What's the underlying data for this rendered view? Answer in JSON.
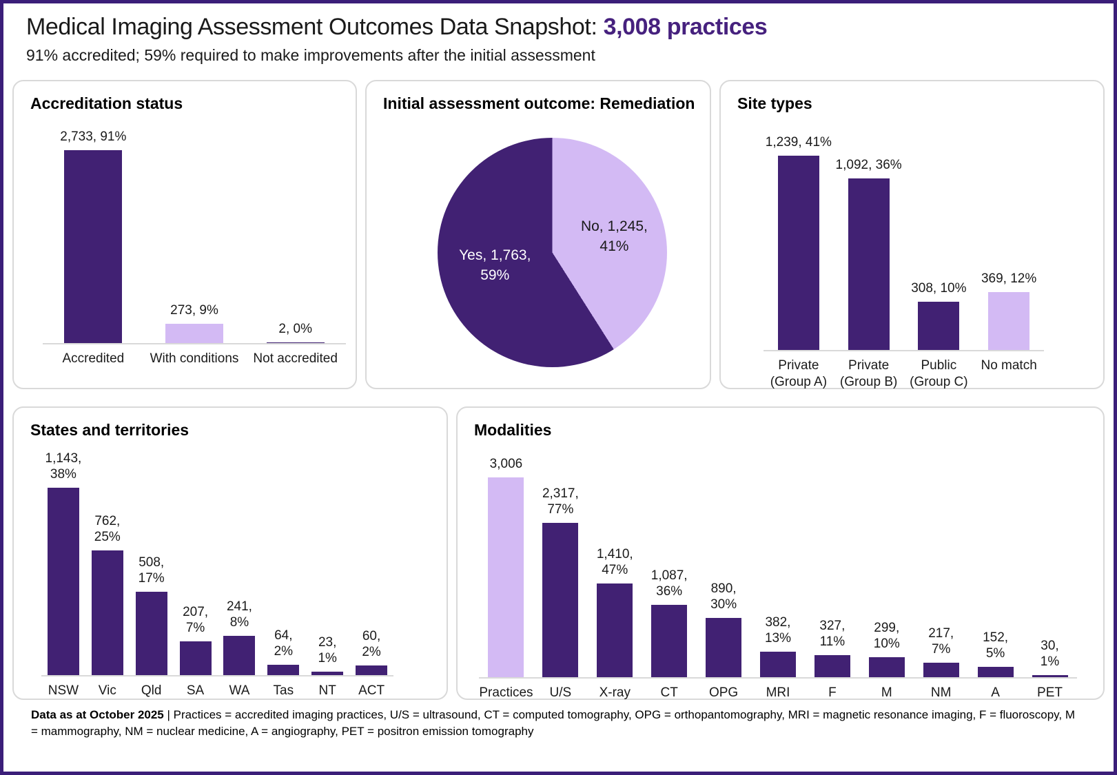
{
  "page": {
    "title_main": "Medical Imaging Assessment Outcomes Data Snapshot:",
    "title_accent": "3,008 practices",
    "subtitle": "91% accredited; 59% required to make improvements after the initial assessment"
  },
  "colors": {
    "dark_purple": "#412173",
    "light_purple": "#d3baf4",
    "accent_text": "#46217e",
    "page_border": "#3b1e79",
    "axis_gray": "#d9d9d9"
  },
  "chart_data": [
    {
      "id": "accreditation",
      "type": "bar",
      "title": "Accreditation status",
      "categories": [
        [
          "Accredited"
        ],
        [
          "With conditions"
        ],
        [
          "Not accredited"
        ]
      ],
      "values": [
        2733,
        273,
        2
      ],
      "value_labels": [
        [
          "2,733, 91%"
        ],
        [
          "273, 9%"
        ],
        [
          "2, 0%"
        ]
      ],
      "bar_colors": [
        "dark",
        "light",
        "dark"
      ],
      "ylim": [
        0,
        2733
      ],
      "grid": false,
      "legend": "none"
    },
    {
      "id": "remediation",
      "type": "pie",
      "title": "Initial assessment outcome: Remediation",
      "slices": [
        {
          "name": "No",
          "value": 1245,
          "pct": 41,
          "color": "light",
          "label_line1": "No, 1,245,",
          "label_line2": "41%"
        },
        {
          "name": "Yes",
          "value": 1763,
          "pct": 59,
          "color": "dark",
          "label_line1": "Yes, 1,763,",
          "label_line2": "59%"
        }
      ],
      "start_angle_deg": 0,
      "direction": "clockwise",
      "legend": "none"
    },
    {
      "id": "site_types",
      "type": "bar",
      "title": "Site types",
      "categories": [
        [
          "Private",
          "(Group A)"
        ],
        [
          "Private",
          "(Group B)"
        ],
        [
          "Public",
          "(Group C)"
        ],
        [
          "No match"
        ]
      ],
      "values": [
        1239,
        1092,
        308,
        369
      ],
      "value_labels": [
        [
          "1,239, 41%"
        ],
        [
          "1,092, 36%"
        ],
        [
          "308, 10%"
        ],
        [
          "369, 12%"
        ]
      ],
      "bar_colors": [
        "dark",
        "dark",
        "dark",
        "light"
      ],
      "ylim": [
        0,
        1239
      ],
      "grid": false,
      "legend": "none"
    },
    {
      "id": "states",
      "type": "bar",
      "title": "States and territories",
      "categories": [
        [
          "NSW"
        ],
        [
          "Vic"
        ],
        [
          "Qld"
        ],
        [
          "SA"
        ],
        [
          "WA"
        ],
        [
          "Tas"
        ],
        [
          "NT"
        ],
        [
          "ACT"
        ]
      ],
      "values": [
        1143,
        762,
        508,
        207,
        241,
        64,
        23,
        60
      ],
      "value_labels": [
        [
          "1,143,",
          "38%"
        ],
        [
          "762,",
          "25%"
        ],
        [
          "508,",
          "17%"
        ],
        [
          "207,",
          "7%"
        ],
        [
          "241,",
          "8%"
        ],
        [
          "64,",
          "2%"
        ],
        [
          "23,",
          "1%"
        ],
        [
          "60,",
          "2%"
        ]
      ],
      "bar_colors": [
        "dark",
        "dark",
        "dark",
        "dark",
        "dark",
        "dark",
        "dark",
        "dark"
      ],
      "ylim": [
        0,
        1143
      ],
      "grid": false,
      "legend": "none"
    },
    {
      "id": "modalities",
      "type": "bar",
      "title": "Modalities",
      "categories": [
        [
          "Practices"
        ],
        [
          "U/S"
        ],
        [
          "X-ray"
        ],
        [
          "CT"
        ],
        [
          "OPG"
        ],
        [
          "MRI"
        ],
        [
          "F"
        ],
        [
          "M"
        ],
        [
          "NM"
        ],
        [
          "A"
        ],
        [
          "PET"
        ]
      ],
      "values": [
        3006,
        2317,
        1410,
        1087,
        890,
        382,
        327,
        299,
        217,
        152,
        30
      ],
      "value_labels": [
        [
          "3,006"
        ],
        [
          "2,317,",
          "77%"
        ],
        [
          "1,410,",
          "47%"
        ],
        [
          "1,087,",
          "36%"
        ],
        [
          "890,",
          "30%"
        ],
        [
          "382,",
          "13%"
        ],
        [
          "327,",
          "11%"
        ],
        [
          "299,",
          "10%"
        ],
        [
          "217,",
          "7%"
        ],
        [
          "152,",
          "5%"
        ],
        [
          "30,",
          "1%"
        ]
      ],
      "bar_colors": [
        "light",
        "dark",
        "dark",
        "dark",
        "dark",
        "dark",
        "dark",
        "dark",
        "dark",
        "dark",
        "dark"
      ],
      "ylim": [
        0,
        3006
      ],
      "grid": false,
      "legend": "none"
    }
  ],
  "footer": {
    "bold_prefix": "Data as at October 2025",
    "text": " | Practices = accredited imaging practices, U/S = ultrasound, CT = computed tomography, OPG = orthopantomography, MRI = magnetic resonance imaging, F = fluoroscopy, M = mammography, NM = nuclear medicine, A = angiography, PET = positron emission tomography"
  }
}
